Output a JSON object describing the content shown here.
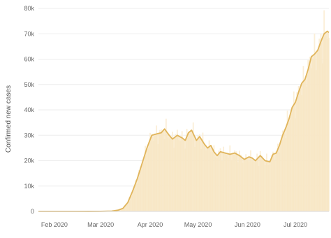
{
  "chart_data": {
    "type": "area",
    "title": "",
    "xlabel": "",
    "ylabel": "Confirmed new cases",
    "ylim": [
      0,
      80000
    ],
    "xlim": [
      "2020-01-22",
      "2020-07-22"
    ],
    "y_ticks": [
      {
        "value": 0,
        "label": "0"
      },
      {
        "value": 10000,
        "label": "10k"
      },
      {
        "value": 20000,
        "label": "20k"
      },
      {
        "value": 30000,
        "label": "30k"
      },
      {
        "value": 40000,
        "label": "40k"
      },
      {
        "value": 50000,
        "label": "50k"
      },
      {
        "value": 60000,
        "label": "60k"
      },
      {
        "value": 70000,
        "label": "70k"
      },
      {
        "value": 80000,
        "label": "80k"
      }
    ],
    "x_ticks": [
      {
        "value": "2020-02-01",
        "label": "Feb 2020"
      },
      {
        "value": "2020-03-01",
        "label": "Mar 2020"
      },
      {
        "value": "2020-04-01",
        "label": "Apr 2020"
      },
      {
        "value": "2020-05-01",
        "label": "May 2020"
      },
      {
        "value": "2020-06-01",
        "label": "Jun 2020"
      },
      {
        "value": "2020-07-01",
        "label": "Jul 2020"
      }
    ],
    "grid": true,
    "colors": {
      "line": "#e0b45a",
      "area": "#f7e4c0",
      "bars": "#fbefd8"
    },
    "series": [
      {
        "points": [
          [
            "2020-01-22",
            0
          ],
          [
            "2020-02-01",
            0
          ],
          [
            "2020-02-15",
            0
          ],
          [
            "2020-03-01",
            30
          ],
          [
            "2020-03-08",
            150
          ],
          [
            "2020-03-12",
            500
          ],
          [
            "2020-03-15",
            1200
          ],
          [
            "2020-03-18",
            3500
          ],
          [
            "2020-03-21",
            8000
          ],
          [
            "2020-03-24",
            13000
          ],
          [
            "2020-03-27",
            19000
          ],
          [
            "2020-03-30",
            25000
          ],
          [
            "2020-04-02",
            30000
          ],
          [
            "2020-04-05",
            30500
          ],
          [
            "2020-04-08",
            31000
          ],
          [
            "2020-04-10",
            32500
          ],
          [
            "2020-04-13",
            30000
          ],
          [
            "2020-04-15",
            28500
          ],
          [
            "2020-04-18",
            30000
          ],
          [
            "2020-04-21",
            29000
          ],
          [
            "2020-04-23",
            28000
          ],
          [
            "2020-04-25",
            31000
          ],
          [
            "2020-04-27",
            32000
          ],
          [
            "2020-04-30",
            28000
          ],
          [
            "2020-05-02",
            29500
          ],
          [
            "2020-05-05",
            26500
          ],
          [
            "2020-05-07",
            25000
          ],
          [
            "2020-05-09",
            26000
          ],
          [
            "2020-05-11",
            23500
          ],
          [
            "2020-05-13",
            22000
          ],
          [
            "2020-05-15",
            23500
          ],
          [
            "2020-05-18",
            23000
          ],
          [
            "2020-05-21",
            22500
          ],
          [
            "2020-05-24",
            23000
          ],
          [
            "2020-05-27",
            22000
          ],
          [
            "2020-05-30",
            20500
          ],
          [
            "2020-06-02",
            21500
          ],
          [
            "2020-06-04",
            21000
          ],
          [
            "2020-06-06",
            20000
          ],
          [
            "2020-06-09",
            22000
          ],
          [
            "2020-06-12",
            20000
          ],
          [
            "2020-06-15",
            19500
          ],
          [
            "2020-06-17",
            22500
          ],
          [
            "2020-06-19",
            23000
          ],
          [
            "2020-06-21",
            26000
          ],
          [
            "2020-06-23",
            30000
          ],
          [
            "2020-06-25",
            33000
          ],
          [
            "2020-06-27",
            36500
          ],
          [
            "2020-06-29",
            41000
          ],
          [
            "2020-07-01",
            43000
          ],
          [
            "2020-07-03",
            47000
          ],
          [
            "2020-07-05",
            50500
          ],
          [
            "2020-07-07",
            52000
          ],
          [
            "2020-07-09",
            56000
          ],
          [
            "2020-07-11",
            61000
          ],
          [
            "2020-07-13",
            62000
          ],
          [
            "2020-07-15",
            63500
          ],
          [
            "2020-07-17",
            67000
          ],
          [
            "2020-07-19",
            70000
          ],
          [
            "2020-07-21",
            71000
          ],
          [
            "2020-07-22",
            70500
          ]
        ]
      }
    ]
  }
}
